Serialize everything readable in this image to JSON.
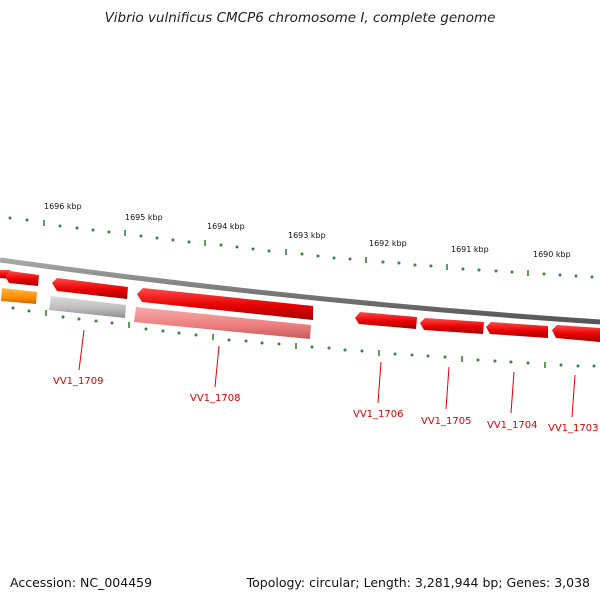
{
  "title": "Vibrio vulnificus CMCP6 chromosome I, complete genome",
  "accession_text": "Accession: NC_004459",
  "summary_text": "Topology: circular; Length: 3,281,944 bp; Genes: 3,038",
  "scale": {
    "ticks": [
      "1696 kbp",
      "1695 kbp",
      "1694 kbp",
      "1693 kbp",
      "1692 kbp",
      "1691 kbp",
      "1690 kbp"
    ]
  },
  "genes": {
    "labels": [
      "VV1_1709",
      "VV1_1708",
      "VV1_1706",
      "VV1_1705",
      "VV1_1704",
      "VV1_1703"
    ]
  },
  "colors": {
    "backbone": "#808080",
    "gene_cds": "#e60000",
    "gene_cds_light": "#ee7777",
    "gene_other": "#ff9900",
    "pseudo": "#b5b5b5",
    "ticks": "#2e8b2e",
    "labels": "#dd0000"
  }
}
